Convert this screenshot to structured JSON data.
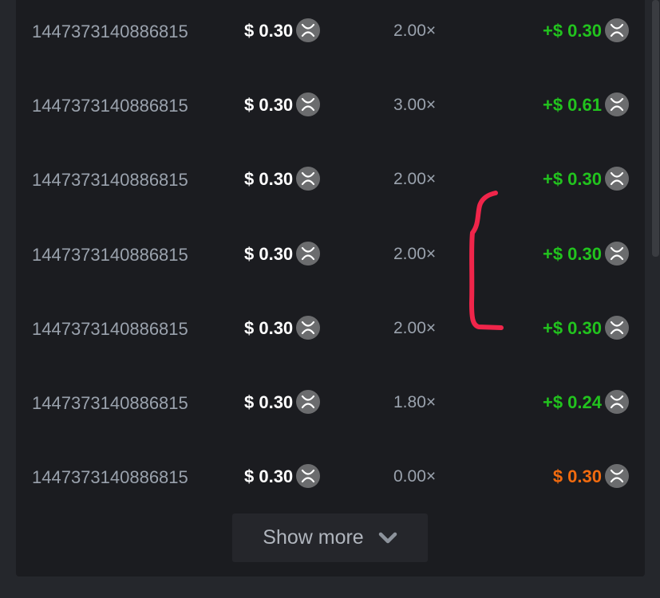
{
  "rows": [
    {
      "id": "1447373140886815",
      "bet": "$ 0.30",
      "multiplier": "2.00×",
      "payout": "+$ 0.30",
      "status": "win"
    },
    {
      "id": "1447373140886815",
      "bet": "$ 0.30",
      "multiplier": "3.00×",
      "payout": "+$ 0.61",
      "status": "win"
    },
    {
      "id": "1447373140886815",
      "bet": "$ 0.30",
      "multiplier": "2.00×",
      "payout": "+$ 0.30",
      "status": "win"
    },
    {
      "id": "1447373140886815",
      "bet": "$ 0.30",
      "multiplier": "2.00×",
      "payout": "+$ 0.30",
      "status": "win"
    },
    {
      "id": "1447373140886815",
      "bet": "$ 0.30",
      "multiplier": "2.00×",
      "payout": "+$ 0.30",
      "status": "win"
    },
    {
      "id": "1447373140886815",
      "bet": "$ 0.30",
      "multiplier": "1.80×",
      "payout": "+$ 0.24",
      "status": "win"
    },
    {
      "id": "1447373140886815",
      "bet": "$ 0.30",
      "multiplier": "0.00×",
      "payout": "$ 0.30",
      "status": "loss"
    }
  ],
  "show_more_label": "Show more",
  "colors": {
    "win": "#22c31e",
    "loss": "#f26b0f",
    "annotation": "#f0254a"
  },
  "icons": {
    "coin": "xrp-coin-icon",
    "show_more": "chevron-down-icon"
  }
}
